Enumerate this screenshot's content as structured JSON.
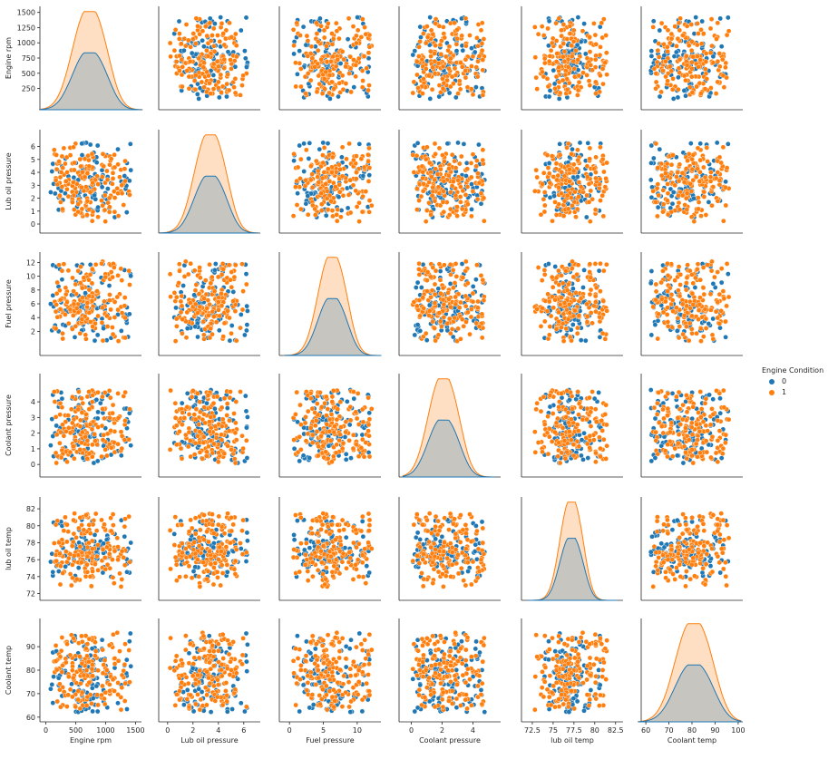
{
  "chart_data": {
    "type": "scatter",
    "subtype": "pairplot",
    "variables": [
      "Engine rpm",
      "Lub oil pressure",
      "Fuel pressure",
      "Coolant pressure",
      "lub oil temp",
      "Coolant temp"
    ],
    "axes": [
      {
        "name": "Engine rpm",
        "lim": [
          -100,
          1600
        ],
        "ticks": [
          0,
          500,
          1000,
          1500
        ],
        "yticks": [
          250,
          500,
          750,
          1000,
          1250,
          1500
        ],
        "data_range": [
          80,
          1430
        ],
        "mode": 650,
        "sd": 230
      },
      {
        "name": "Lub oil pressure",
        "lim": [
          -0.7,
          7.3
        ],
        "ticks": [
          0,
          2,
          4,
          6
        ],
        "yticks": [
          0,
          1,
          2,
          3,
          4,
          5,
          6
        ],
        "data_range": [
          0.2,
          6.3
        ],
        "mode": 3.0,
        "sd": 1.0
      },
      {
        "name": "Fuel pressure",
        "lim": [
          -1.5,
          13.5
        ],
        "ticks": [
          0,
          5,
          10
        ],
        "yticks": [
          2,
          4,
          6,
          8,
          10,
          12
        ],
        "data_range": [
          0.5,
          12.2
        ],
        "mode": 5.7,
        "sd": 1.7
      },
      {
        "name": "Coolant pressure",
        "lim": [
          -0.8,
          5.8
        ],
        "ticks": [
          0,
          2,
          4
        ],
        "yticks": [
          0,
          1,
          2,
          3,
          4
        ],
        "data_range": [
          0.1,
          4.8
        ],
        "mode": 1.8,
        "sd": 0.8
      },
      {
        "name": "lub oil temp",
        "lim": [
          71.2,
          83.4
        ],
        "ticks": [
          72.5,
          75.0,
          77.5,
          80.0,
          82.5
        ],
        "yticks": [
          72,
          74,
          76,
          78,
          80,
          82
        ],
        "data_range": [
          72.8,
          81.8
        ],
        "mode": 76.8,
        "sd": 1.1
      },
      {
        "name": "Coolant temp",
        "lim": [
          58,
          102
        ],
        "ticks": [
          60,
          70,
          80,
          90,
          100
        ],
        "yticks": [
          60,
          70,
          80,
          90
        ],
        "data_range": [
          62,
          96
        ],
        "mode": 78.5,
        "sd": 6.5
      }
    ],
    "diag_peaks": {
      "0": [
        0.55,
        0.55,
        0.55,
        0.55,
        0.6,
        0.55
      ],
      "1": [
        0.95,
        0.95,
        0.95,
        0.95,
        0.95,
        0.95
      ]
    },
    "hue": {
      "title": "Engine Condition",
      "levels": [
        {
          "label": "0",
          "color": "#1f77b4"
        },
        {
          "label": "1",
          "color": "#ff7f0e"
        }
      ]
    },
    "point_counts": {
      "0": 110,
      "1": 170
    },
    "grid": false,
    "legend_position": "center-right"
  }
}
